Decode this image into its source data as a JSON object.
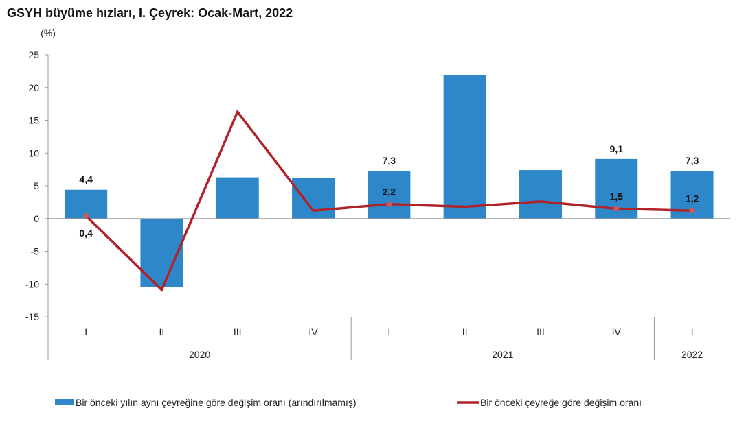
{
  "chart_data": {
    "type": "bar+line",
    "title": "GSYH büyüme hızları, I. Çeyrek: Ocak-Mart, 2022",
    "ylabel": "(%)",
    "ylim": [
      -15,
      25
    ],
    "yticks": [
      25,
      20,
      15,
      10,
      5,
      0,
      -5,
      -10,
      -15
    ],
    "categories": [
      "I",
      "II",
      "III",
      "IV",
      "I",
      "II",
      "III",
      "IV",
      "I"
    ],
    "years": [
      {
        "label": "2020",
        "count": 4
      },
      {
        "label": "2021",
        "count": 4
      },
      {
        "label": "2022",
        "count": 1
      }
    ],
    "series": [
      {
        "name": "Bir önceki yılın aynı çeyreğine göre değişim oranı (arındırılmamış)",
        "type": "bar",
        "color": "#2E87C8",
        "values": [
          4.4,
          -10.4,
          6.3,
          6.2,
          7.3,
          21.9,
          7.4,
          9.1,
          7.3
        ],
        "labels": [
          "4,4",
          null,
          null,
          null,
          "7,3",
          null,
          null,
          "9,1",
          "7,3"
        ]
      },
      {
        "name": "Bir önceki çeyreğe göre değişim oranı",
        "type": "line",
        "color": "#B0232A",
        "values": [
          0.4,
          -10.9,
          16.3,
          1.2,
          2.2,
          1.8,
          2.6,
          1.5,
          1.2
        ],
        "labels": [
          "0,4",
          null,
          null,
          null,
          "2,2",
          null,
          null,
          "1,5",
          "1,2"
        ]
      }
    ],
    "legend": "bottom"
  }
}
